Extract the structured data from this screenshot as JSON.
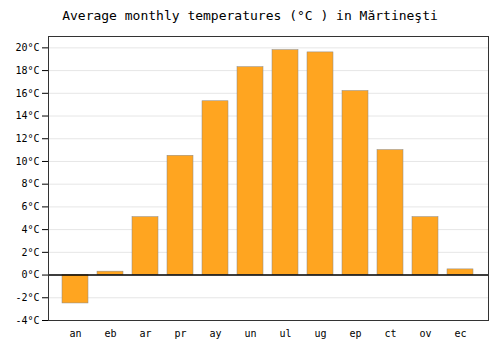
{
  "chart_data": {
    "type": "bar",
    "title": "Average monthly temperatures (°C ) in Mărtineşti",
    "categories": [
      "an",
      "eb",
      "ar",
      "pr",
      "ay",
      "un",
      "ul",
      "ug",
      "ep",
      "ct",
      "ov",
      "ec"
    ],
    "values": [
      -2.5,
      0.3,
      5.1,
      10.5,
      15.3,
      18.3,
      19.8,
      19.6,
      16.2,
      11.0,
      5.1,
      0.5
    ],
    "color": "#FFA520",
    "ylim": [
      -4,
      21
    ],
    "yticks": [
      {
        "value": -4,
        "label": "-4°C"
      },
      {
        "value": -2,
        "label": "-2°C"
      },
      {
        "value": 0,
        "label": "0°C"
      },
      {
        "value": 2,
        "label": "2°C"
      },
      {
        "value": 4,
        "label": "4°C"
      },
      {
        "value": 6,
        "label": "6°C"
      },
      {
        "value": 8,
        "label": "8°C"
      },
      {
        "value": 10,
        "label": "10°C"
      },
      {
        "value": 12,
        "label": "12°C"
      },
      {
        "value": 14,
        "label": "14°C"
      },
      {
        "value": 16,
        "label": "16°C"
      },
      {
        "value": 18,
        "label": "18°C"
      },
      {
        "value": 20,
        "label": "20°C"
      }
    ],
    "grid": true
  }
}
